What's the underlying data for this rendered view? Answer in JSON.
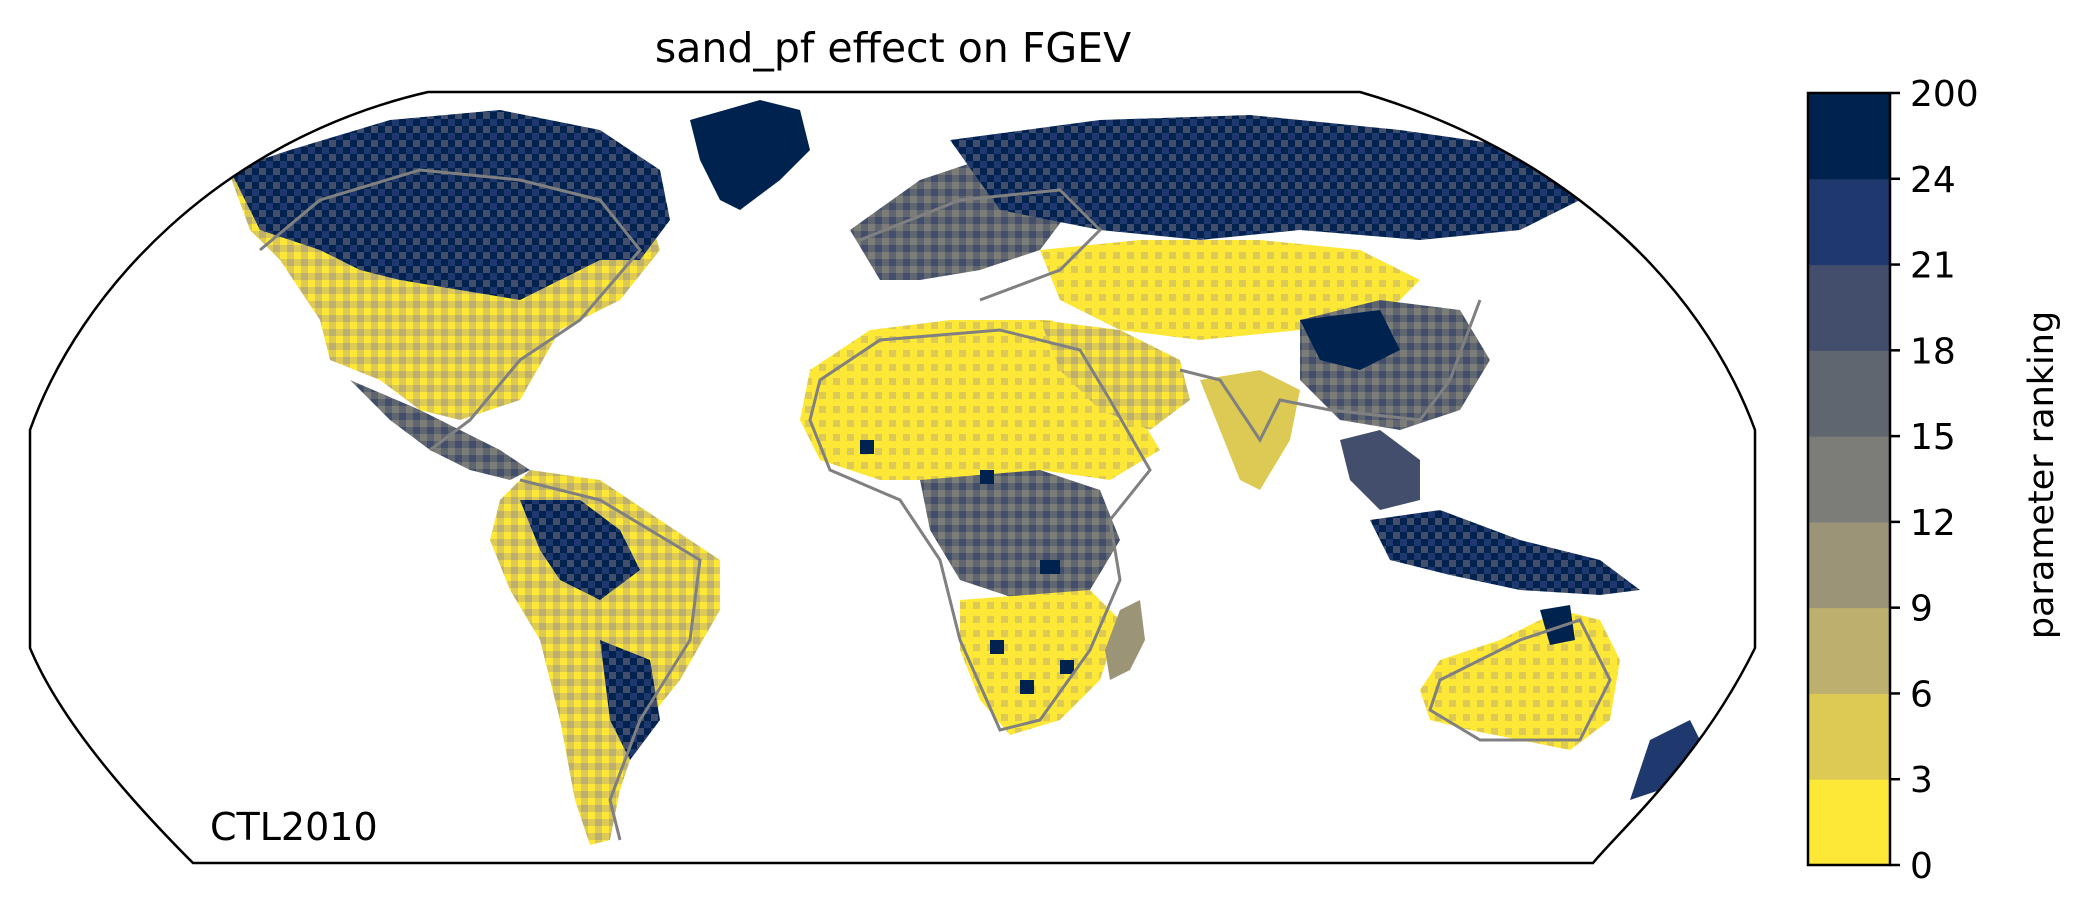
{
  "title": "sand_pf effect on FGEV",
  "run_label": "CTL2010",
  "colorbar": {
    "label": "parameter ranking",
    "ticks": [
      "0",
      "3",
      "6",
      "9",
      "12",
      "15",
      "18",
      "21",
      "24",
      "200"
    ],
    "colors": [
      "#fde737",
      "#dcca55",
      "#bdb06f",
      "#9c9477",
      "#7c7c78",
      "#5f6670",
      "#434e6c",
      "#1f386d",
      "#00224e"
    ]
  },
  "map": {
    "projection": "Robinson",
    "land_outline_color": "#808080",
    "regions": [
      {
        "name": "north-america",
        "color_class": 1
      },
      {
        "name": "canada-arctic",
        "color_class": 8
      },
      {
        "name": "greenland",
        "color_class": 8
      },
      {
        "name": "central-america",
        "color_class": 4
      },
      {
        "name": "south-america",
        "color_class": 2
      },
      {
        "name": "amazon",
        "color_class": 8
      },
      {
        "name": "sahara",
        "color_class": 0
      },
      {
        "name": "central-africa",
        "color_class": 5
      },
      {
        "name": "southern-africa",
        "color_class": 0
      },
      {
        "name": "madagascar",
        "color_class": 3
      },
      {
        "name": "europe",
        "color_class": 6
      },
      {
        "name": "siberia",
        "color_class": 8
      },
      {
        "name": "central-asia",
        "color_class": 0
      },
      {
        "name": "middle-east",
        "color_class": 1
      },
      {
        "name": "india",
        "color_class": 2
      },
      {
        "name": "east-asia",
        "color_class": 5
      },
      {
        "name": "southeast-asia",
        "color_class": 6
      },
      {
        "name": "indonesia",
        "color_class": 8
      },
      {
        "name": "australia",
        "color_class": 0
      },
      {
        "name": "new-zealand",
        "color_class": 7
      }
    ]
  }
}
